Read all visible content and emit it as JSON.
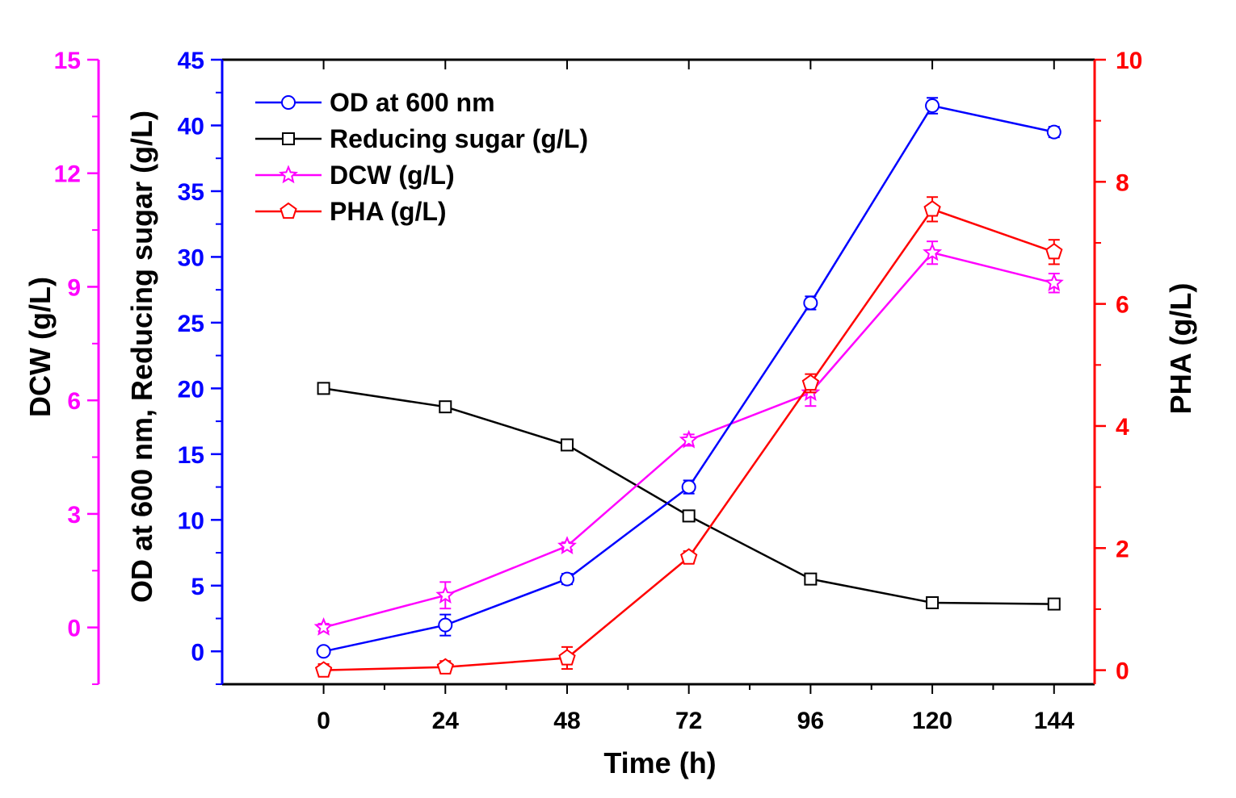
{
  "chart_data": {
    "type": "line",
    "x": [
      0,
      24,
      48,
      72,
      96,
      120,
      144
    ],
    "xlabel": "Time (h)",
    "xlim": [
      -20,
      152
    ],
    "xticks": [
      0,
      24,
      48,
      72,
      96,
      120,
      144
    ],
    "x_tick_labels": [
      "0",
      "24",
      "48",
      "72",
      "96",
      "120",
      "144"
    ],
    "axes": {
      "left_outer": {
        "label": "DCW (g/L)",
        "color": "#ff00ff",
        "ylim": [
          -1.5,
          15
        ],
        "ticks": [
          0,
          3,
          6,
          9,
          12,
          15
        ],
        "tick_labels": [
          "0",
          "3",
          "6",
          "9",
          "12",
          "15"
        ]
      },
      "left_inner": {
        "label": "OD at 600 nm, Reducing sugar (g/L)",
        "color": "#0000ff",
        "ylim": [
          -2.5,
          45
        ],
        "ticks": [
          0,
          5,
          10,
          15,
          20,
          25,
          30,
          35,
          40,
          45
        ],
        "tick_labels": [
          "0",
          "5",
          "10",
          "15",
          "20",
          "25",
          "30",
          "35",
          "40",
          "45"
        ]
      },
      "right": {
        "label": "PHA (g/L)",
        "color": "#ff0000",
        "ylim": [
          -0.23,
          10
        ],
        "ticks": [
          0,
          2,
          4,
          6,
          8,
          10
        ],
        "tick_labels": [
          "0",
          "2",
          "4",
          "6",
          "8",
          "10"
        ]
      }
    },
    "series": [
      {
        "name": "OD at 600 nm",
        "axis": "left_inner",
        "color": "#0000ff",
        "marker": "circle",
        "values": [
          0.0,
          2.0,
          5.5,
          12.5,
          26.5,
          41.5,
          39.5
        ],
        "errors": [
          0.2,
          0.8,
          0.4,
          0.5,
          0.5,
          0.6,
          0.4
        ]
      },
      {
        "name": "Reducing sugar (g/L)",
        "axis": "left_inner",
        "color": "#000000",
        "marker": "square",
        "values": [
          20.0,
          18.6,
          15.7,
          10.3,
          5.5,
          3.7,
          3.6
        ],
        "errors": [
          0.2,
          0.3,
          0.3,
          0.3,
          0.3,
          0.3,
          0.3
        ]
      },
      {
        "name": "DCW (g/L)",
        "axis": "left_outer",
        "color": "#ff00ff",
        "marker": "star",
        "values": [
          0.0,
          0.85,
          2.15,
          4.95,
          6.2,
          9.9,
          9.1
        ],
        "errors": [
          0.1,
          0.35,
          0.1,
          0.15,
          0.35,
          0.3,
          0.25
        ]
      },
      {
        "name": "PHA (g/L)",
        "axis": "right",
        "color": "#ff0000",
        "marker": "pentagon",
        "values": [
          0.0,
          0.05,
          0.2,
          1.85,
          4.7,
          7.55,
          6.85
        ],
        "errors": [
          0.1,
          0.1,
          0.18,
          0.1,
          0.15,
          0.2,
          0.2
        ]
      }
    ],
    "legend_position": "top-left"
  }
}
